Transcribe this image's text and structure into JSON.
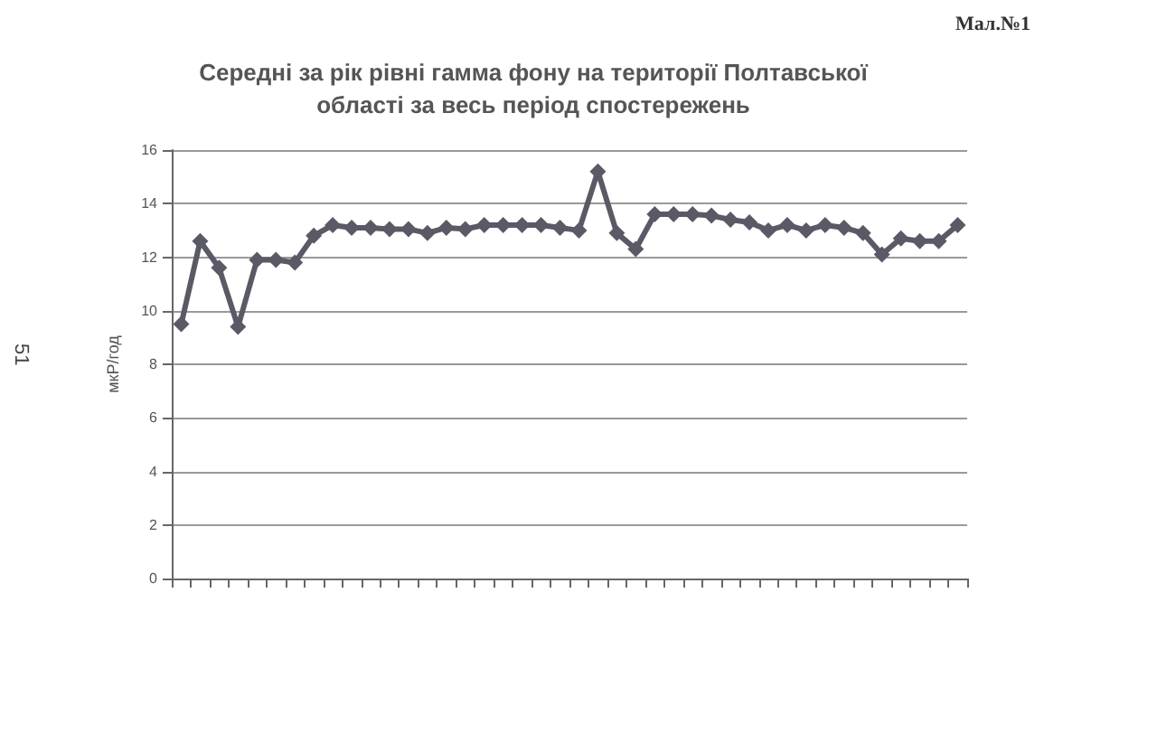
{
  "chart_data": {
    "type": "line",
    "title": "Середні за рік рівні гамма фону на території Полтавської\nобласті за весь період спостережень",
    "ylabel": "мкР/год",
    "annotations": [
      "Мал.№1",
      "51"
    ],
    "categories": [
      null,
      null,
      null,
      null,
      null,
      null,
      null,
      null,
      null,
      null,
      null,
      null,
      null,
      null,
      null,
      null,
      null,
      null,
      null,
      null,
      null,
      null,
      null,
      null,
      null,
      null,
      null,
      null,
      null,
      null,
      null,
      null,
      null,
      null,
      null,
      null,
      null,
      null,
      null,
      null,
      null,
      null
    ],
    "series": [
      {
        "color": "#5a5a66",
        "values": [
          9.5,
          12.6,
          11.6,
          9.4,
          11.9,
          11.9,
          11.8,
          12.8,
          13.2,
          13.1,
          13.1,
          13.05,
          13.05,
          12.9,
          13.1,
          13.05,
          13.2,
          13.2,
          13.2,
          13.2,
          13.1,
          13.0,
          15.2,
          12.9,
          12.3,
          13.6,
          13.6,
          13.6,
          13.55,
          13.4,
          13.3,
          13.0,
          13.2,
          13.0,
          13.2,
          13.1,
          12.9,
          12.1,
          12.7,
          12.6,
          12.6,
          13.2
        ]
      }
    ],
    "ylim": [
      0,
      16
    ],
    "yticks": [
      0,
      2,
      4,
      6,
      8,
      10,
      12,
      14,
      16
    ],
    "grid": "y",
    "marker": "diamond",
    "line_style": "solid",
    "tick_labels": "y"
  }
}
